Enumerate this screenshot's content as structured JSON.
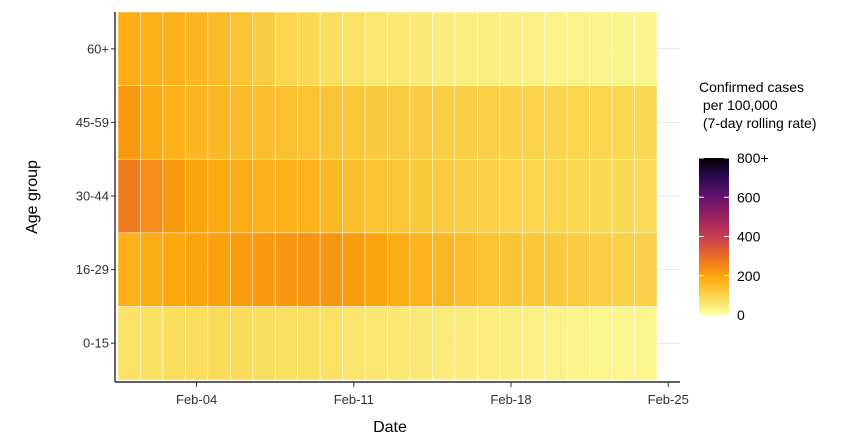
{
  "chart_data": {
    "type": "heatmap",
    "xlabel": "Date",
    "ylabel": "Age group",
    "x_ticks": [
      "Feb-04",
      "Feb-11",
      "Feb-18",
      "Feb-25"
    ],
    "x_start_date": "Feb-01",
    "days": 24,
    "categories": [
      "0-15",
      "16-29",
      "30-44",
      "45-59",
      "60+"
    ],
    "values": [
      [
        70,
        75,
        80,
        82,
        85,
        85,
        80,
        78,
        75,
        70,
        65,
        60,
        55,
        52,
        48,
        45,
        42,
        40,
        35,
        30,
        28,
        25,
        25,
        25
      ],
      [
        175,
        185,
        195,
        200,
        210,
        215,
        220,
        225,
        228,
        225,
        215,
        200,
        185,
        170,
        160,
        150,
        140,
        135,
        130,
        125,
        120,
        115,
        110,
        108
      ],
      [
        270,
        240,
        220,
        200,
        190,
        185,
        180,
        175,
        170,
        160,
        150,
        140,
        130,
        125,
        120,
        115,
        110,
        105,
        100,
        98,
        95,
        92,
        90,
        88
      ],
      [
        220,
        190,
        175,
        165,
        160,
        155,
        150,
        145,
        140,
        135,
        130,
        125,
        120,
        118,
        115,
        112,
        110,
        108,
        105,
        102,
        100,
        98,
        96,
        95
      ],
      [
        185,
        180,
        175,
        165,
        155,
        140,
        120,
        100,
        90,
        80,
        70,
        60,
        55,
        50,
        45,
        42,
        40,
        38,
        35,
        32,
        30,
        28,
        27,
        26
      ]
    ],
    "legend": {
      "title": [
        "Confirmed cases",
        " per 100,000",
        " (7-day rolling rate)"
      ],
      "ticks": [
        "0",
        "200",
        "400",
        "600",
        "800+"
      ],
      "min": 0,
      "max": 800,
      "colormap": "inferno (reversed)"
    }
  }
}
